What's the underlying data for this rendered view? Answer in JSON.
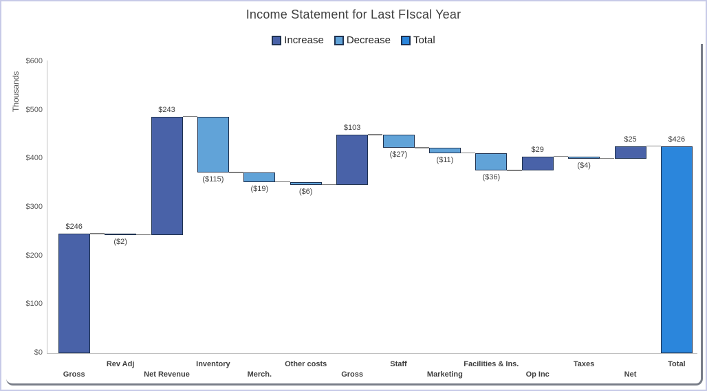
{
  "title": "Income Statement for Last FIscal Year",
  "colors": {
    "increase": "#4962A8",
    "decrease": "#61A3D8",
    "total": "#2B86DC",
    "bar_border": "#1F3250",
    "connector": "#808080",
    "axis_line": "#BFBFBF",
    "tick_text": "#595959",
    "label_text": "#404040",
    "legend_text": "#262626",
    "title_text": "#404040",
    "outer_border": "#C7CAE7",
    "frame_border": "#787D88"
  },
  "chart_data": {
    "type": "bar",
    "subtype": "waterfall",
    "title": "Income Statement for Last FIscal Year",
    "ylabel": "Thousands",
    "xlabel": "",
    "ylim": [
      0,
      600
    ],
    "y_tick_step": 100,
    "y_tick_labels": [
      "$0",
      "$100",
      "$200",
      "$300",
      "$400",
      "$500",
      "$600"
    ],
    "grid": "off",
    "legend_position": "top",
    "legend": [
      {
        "label": "Increase",
        "type": "increase"
      },
      {
        "label": "Decrease",
        "type": "decrease"
      },
      {
        "label": "Total",
        "type": "total"
      }
    ],
    "categories": [
      "Gross",
      "Rev Adj",
      "Net Revenue",
      "Inventory",
      "Merch.",
      "Other costs",
      "Gross",
      "Staff",
      "Marketing",
      "Facilities & Ins.",
      "Op Inc",
      "Taxes",
      "Net",
      "Total"
    ],
    "bars": [
      {
        "category": "Gross",
        "value": 246,
        "type": "increase",
        "label": "$246",
        "start": 0,
        "end": 246
      },
      {
        "category": "Rev Adj",
        "value": -2,
        "type": "decrease",
        "label": "($2)",
        "start": 246,
        "end": 244
      },
      {
        "category": "Net Revenue",
        "value": 243,
        "type": "increase",
        "label": "$243",
        "start": 244,
        "end": 487
      },
      {
        "category": "Inventory",
        "value": -115,
        "type": "decrease",
        "label": "($115)",
        "start": 487,
        "end": 372
      },
      {
        "category": "Merch.",
        "value": -19,
        "type": "decrease",
        "label": "($19)",
        "start": 372,
        "end": 353
      },
      {
        "category": "Other costs",
        "value": -6,
        "type": "decrease",
        "label": "($6)",
        "start": 353,
        "end": 347
      },
      {
        "category": "Gross",
        "value": 103,
        "type": "increase",
        "label": "$103",
        "start": 347,
        "end": 450
      },
      {
        "category": "Staff",
        "value": -27,
        "type": "decrease",
        "label": "($27)",
        "start": 450,
        "end": 423
      },
      {
        "category": "Marketing",
        "value": -11,
        "type": "decrease",
        "label": "($11)",
        "start": 423,
        "end": 412
      },
      {
        "category": "Facilities & Ins.",
        "value": -36,
        "type": "decrease",
        "label": "($36)",
        "start": 412,
        "end": 376
      },
      {
        "category": "Op Inc",
        "value": 29,
        "type": "increase",
        "label": "$29",
        "start": 376,
        "end": 405
      },
      {
        "category": "Taxes",
        "value": -4,
        "type": "decrease",
        "label": "($4)",
        "start": 405,
        "end": 401
      },
      {
        "category": "Net",
        "value": 25,
        "type": "increase",
        "label": "$25",
        "start": 401,
        "end": 426
      },
      {
        "category": "Total",
        "value": 426,
        "type": "total",
        "label": "$426",
        "start": 0,
        "end": 426
      }
    ]
  }
}
